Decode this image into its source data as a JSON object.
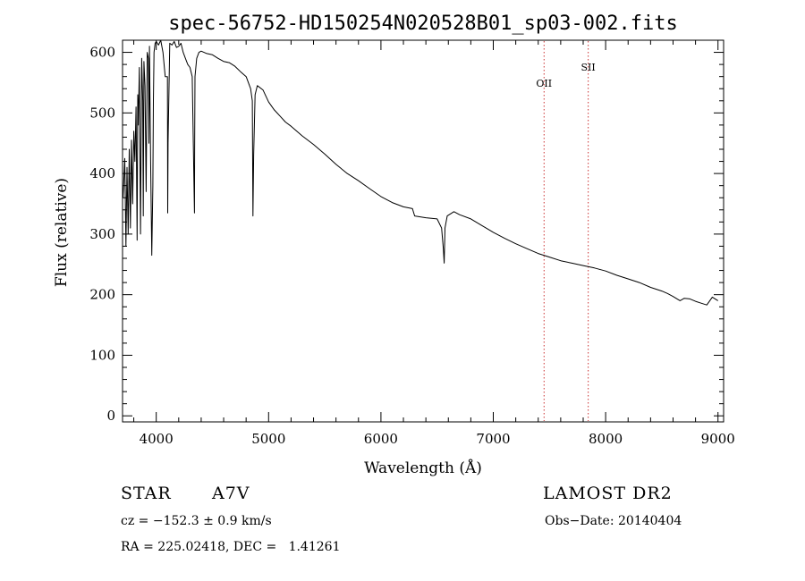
{
  "chart_data": {
    "type": "line",
    "title": "spec-56752-HD150254N020528B01_sp03-002.fits",
    "xlabel": "Wavelength (Å)",
    "ylabel": "Flux (relative)",
    "xlim": [
      3700,
      9050
    ],
    "ylim": [
      -10,
      620
    ],
    "xticks": [
      4000,
      5000,
      6000,
      7000,
      8000,
      9000
    ],
    "yticks": [
      0,
      100,
      200,
      300,
      400,
      500,
      600
    ],
    "line_color": "#000000",
    "marker_color": "#cc3333",
    "lines": [
      {
        "label": "OII",
        "x": 7452
      },
      {
        "label": "SII",
        "x": 7845
      }
    ],
    "series": [
      {
        "x": [
          3705,
          3720,
          3730,
          3740,
          3750,
          3760,
          3770,
          3780,
          3790,
          3800,
          3810,
          3820,
          3830,
          3835,
          3840,
          3850,
          3860,
          3870,
          3880,
          3885,
          3890,
          3900,
          3910,
          3920,
          3930,
          3935,
          3940,
          3950,
          3960,
          3970,
          3975,
          3980,
          3990,
          4000,
          4020,
          4040,
          4060,
          4080,
          4100,
          4102,
          4105,
          4120,
          4140,
          4160,
          4180,
          4200,
          4220,
          4240,
          4260,
          4280,
          4300,
          4320,
          4340,
          4342,
          4345,
          4360,
          4380,
          4400,
          4450,
          4500,
          4550,
          4600,
          4650,
          4700,
          4750,
          4800,
          4840,
          4855,
          4861,
          4867,
          4880,
          4900,
          4950,
          5000,
          5050,
          5100,
          5150,
          5200,
          5300,
          5400,
          5500,
          5600,
          5700,
          5800,
          5900,
          6000,
          6100,
          6200,
          6280,
          6300,
          6400,
          6500,
          6540,
          6556,
          6563,
          6570,
          6590,
          6650,
          6700,
          6800,
          6900,
          7000,
          7100,
          7200,
          7300,
          7400,
          7500,
          7600,
          7700,
          7800,
          7900,
          8000,
          8100,
          8200,
          8300,
          8400,
          8500,
          8550,
          8600,
          8662,
          8700,
          8750,
          8800,
          8850,
          8900,
          8950,
          9000
        ],
        "y": [
          360,
          425,
          280,
          410,
          300,
          440,
          310,
          455,
          350,
          470,
          420,
          510,
          290,
          530,
          480,
          575,
          300,
          590,
          520,
          330,
          585,
          545,
          370,
          600,
          590,
          450,
          610,
          420,
          265,
          380,
          520,
          600,
          615,
          618,
          612,
          620,
          600,
          560,
          560,
          335,
          450,
          615,
          612,
          618,
          608,
          610,
          615,
          600,
          590,
          580,
          575,
          560,
          335,
          440,
          560,
          590,
          600,
          602,
          598,
          596,
          590,
          585,
          583,
          577,
          568,
          560,
          540,
          520,
          330,
          430,
          530,
          545,
          538,
          518,
          505,
          495,
          485,
          478,
          462,
          448,
          432,
          415,
          400,
          388,
          375,
          362,
          352,
          345,
          342,
          330,
          327,
          325,
          310,
          275,
          252,
          310,
          330,
          337,
          332,
          325,
          314,
          303,
          293,
          284,
          276,
          268,
          262,
          256,
          252,
          248,
          244,
          239,
          232,
          226,
          220,
          212,
          206,
          202,
          197,
          190,
          194,
          193,
          189,
          186,
          183,
          196,
          190
        ]
      }
    ],
    "ann": {
      "star_label": "STAR",
      "spectral_type": "A7V",
      "survey": "LAMOST DR2",
      "cz": "cz = −152.3 ± 0.9 km/s",
      "obs_date": "Obs−Date: 20140404",
      "radec": "RA = 225.02418, DEC =   1.41261"
    }
  }
}
